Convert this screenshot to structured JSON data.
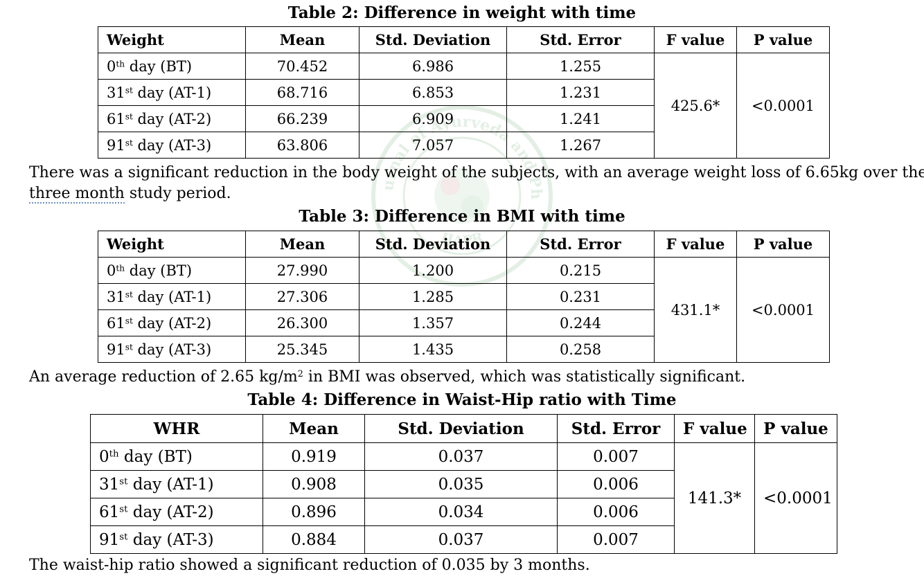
{
  "watermark": {
    "text_top": "International Journal of Ayurveda and Pharma Research",
    "text_bottom": "IJAPR",
    "color": "#2e8b3a"
  },
  "table2": {
    "caption": "Table 2: Difference in weight with time",
    "headers": [
      "Weight",
      "Mean",
      "Std. Deviation",
      "Std. Error",
      "F value",
      "P value"
    ],
    "rows": [
      {
        "day": "0",
        "sup": "th",
        "rest": " day (BT)",
        "mean": "70.452",
        "sd": "6.986",
        "se": "1.255"
      },
      {
        "day": "31",
        "sup": "st",
        "rest": " day (AT-1)",
        "mean": "68.716",
        "sd": "6.853",
        "se": "1.231"
      },
      {
        "day": "61",
        "sup": "st",
        "rest": " day (AT-2)",
        "mean": "66.239",
        "sd": "6.909",
        "se": "1.241"
      },
      {
        "day": "91",
        "sup": "st",
        "rest": " day (AT-3)",
        "mean": "63.806",
        "sd": "7.057",
        "se": "1.267"
      }
    ],
    "f_value": "425.6*",
    "p_value": "<0.0001"
  },
  "para1": {
    "line1": "There was a significant reduction in the body weight of the subjects, with an average weight loss of 6.65kg over the",
    "line2_underlined": "three month",
    "line2_rest": " study period."
  },
  "table3": {
    "caption": "Table 3: Difference in BMI with time",
    "headers": [
      "Weight",
      "Mean",
      "Std. Deviation",
      "Std. Error",
      "F value",
      "P value"
    ],
    "rows": [
      {
        "day": "0",
        "sup": "th",
        "rest": " day (BT)",
        "mean": "27.990",
        "sd": "1.200",
        "se": "0.215"
      },
      {
        "day": "31",
        "sup": "st",
        "rest": " day (AT-1)",
        "mean": "27.306",
        "sd": "1.285",
        "se": "0.231"
      },
      {
        "day": "61",
        "sup": "st",
        "rest": " day (AT-2)",
        "mean": "26.300",
        "sd": "1.357",
        "se": "0.244"
      },
      {
        "day": "91",
        "sup": "st",
        "rest": " day (AT-3)",
        "mean": "25.345",
        "sd": "1.435",
        "se": "0.258"
      }
    ],
    "f_value": "431.1*",
    "p_value": "<0.0001"
  },
  "para2": {
    "before": "An average reduction of 2.65 kg/m",
    "sup": "2",
    "after": " in BMI was observed, which was statistically significant."
  },
  "table4": {
    "caption": "Table 4: Difference in Waist-Hip ratio with Time",
    "headers": [
      "WHR",
      "Mean",
      "Std. Deviation",
      "Std. Error",
      "F value",
      "P value"
    ],
    "rows": [
      {
        "day": "0",
        "sup": "th",
        "rest": " day (BT)",
        "mean": "0.919",
        "sd": "0.037",
        "se": "0.007"
      },
      {
        "day": "31",
        "sup": "st",
        "rest": " day (AT-1)",
        "mean": "0.908",
        "sd": "0.035",
        "se": "0.006"
      },
      {
        "day": "61",
        "sup": "st",
        "rest": " day (AT-2)",
        "mean": "0.896",
        "sd": "0.034",
        "se": "0.006"
      },
      {
        "day": "91",
        "sup": "st",
        "rest": " day (AT-3)",
        "mean": "0.884",
        "sd": "0.037",
        "se": "0.007"
      }
    ],
    "f_value": "141.3*",
    "p_value": "<0.0001"
  },
  "trailing_line": "The waist-hip ratio showed a significant reduction of 0.035 by 3 months."
}
